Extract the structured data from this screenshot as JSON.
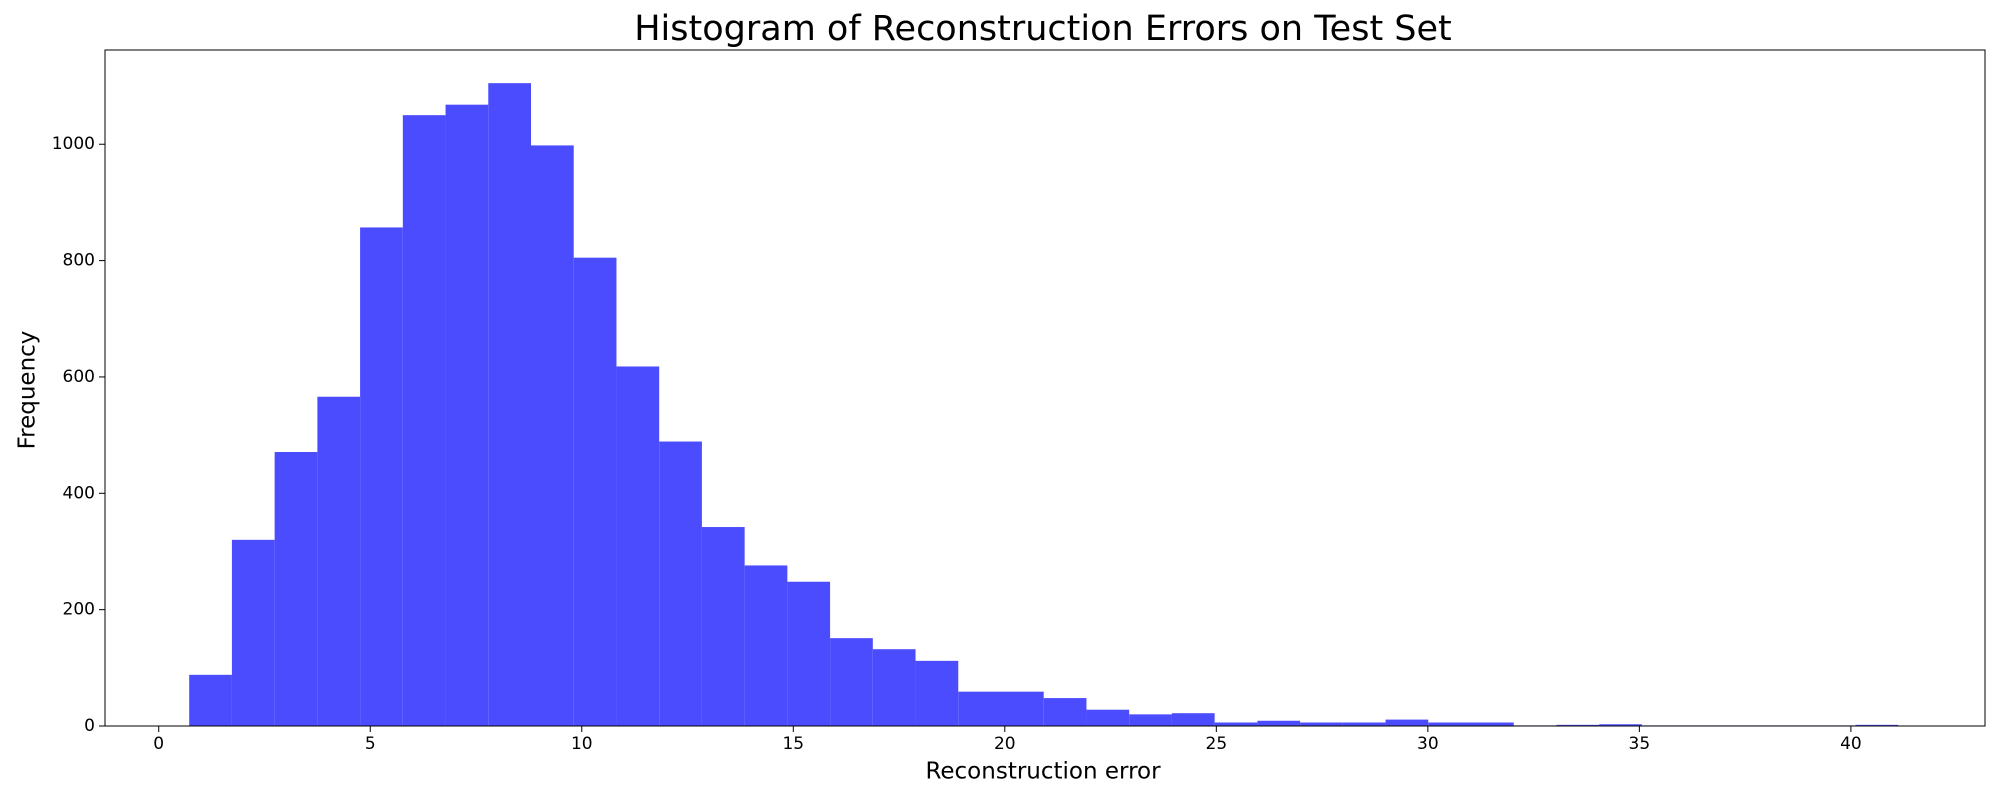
{
  "chart_data": {
    "type": "histogram",
    "title": "Histogram of Reconstruction Errors on Test Set",
    "xlabel": "Reconstruction error",
    "ylabel": "Frequency",
    "color": "#4c4cff",
    "bins": [
      0.72,
      1.73,
      2.74,
      3.75,
      4.76,
      5.77,
      6.78,
      7.79,
      8.8,
      9.81,
      10.82,
      11.83,
      12.84,
      13.85,
      14.86,
      15.87,
      16.88,
      17.89,
      18.9,
      19.91,
      20.92,
      21.93,
      22.94,
      23.95,
      24.96,
      25.97,
      26.98,
      27.99,
      29.0,
      30.01,
      31.02,
      32.03,
      33.04,
      34.05,
      35.06,
      36.07,
      37.08,
      38.09,
      39.1,
      40.11,
      41.12
    ],
    "values": [
      88,
      320,
      471,
      566,
      857,
      1050,
      1068,
      1105,
      998,
      805,
      618,
      489,
      342,
      276,
      248,
      151,
      132,
      112,
      59,
      59,
      48,
      28,
      20,
      22,
      6,
      9,
      6,
      6,
      11,
      6,
      6,
      1,
      2,
      3,
      1,
      1,
      1,
      1,
      1,
      2
    ],
    "xlim": [
      -1.27,
      43.17
    ],
    "ylim": [
      0,
      1162
    ],
    "xticks": [
      0,
      5,
      10,
      15,
      20,
      25,
      30,
      35,
      40
    ],
    "yticks": [
      0,
      200,
      400,
      600,
      800,
      1000
    ]
  }
}
